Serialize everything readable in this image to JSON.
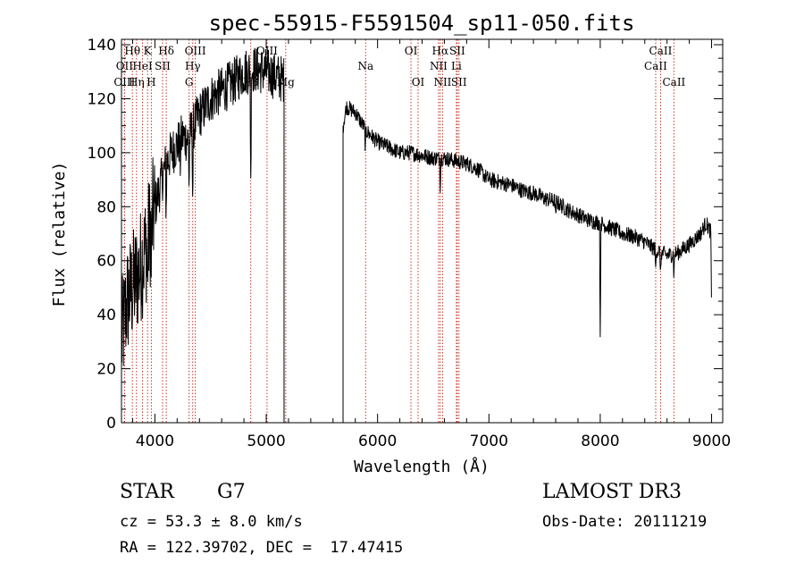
{
  "chart_data": {
    "type": "line",
    "title": "spec-55915-F5591504_sp11-050.fits",
    "xlabel": "Wavelength (Å)",
    "ylabel": "Flux (relative)",
    "xlim": [
      3700,
      9100
    ],
    "ylim": [
      0,
      142
    ],
    "xticks": [
      4000,
      5000,
      6000,
      7000,
      8000,
      9000
    ],
    "yticks": [
      0,
      20,
      40,
      60,
      80,
      100,
      120,
      140
    ],
    "gap": [
      5160,
      5690
    ],
    "continuum": [
      [
        3700,
        30
      ],
      [
        3750,
        45
      ],
      [
        3800,
        50
      ],
      [
        3850,
        55
      ],
      [
        3900,
        62
      ],
      [
        3950,
        70
      ],
      [
        4000,
        80
      ],
      [
        4050,
        88
      ],
      [
        4100,
        96
      ],
      [
        4150,
        100
      ],
      [
        4200,
        103
      ],
      [
        4250,
        106
      ],
      [
        4300,
        105
      ],
      [
        4350,
        110
      ],
      [
        4400,
        114
      ],
      [
        4500,
        120
      ],
      [
        4600,
        123
      ],
      [
        4700,
        126
      ],
      [
        4800,
        130
      ],
      [
        4900,
        131
      ],
      [
        5000,
        130
      ],
      [
        5100,
        128
      ],
      [
        5160,
        127
      ],
      [
        5690,
        110
      ],
      [
        5720,
        117
      ],
      [
        5800,
        115
      ],
      [
        5900,
        108
      ],
      [
        6000,
        104
      ],
      [
        6100,
        102
      ],
      [
        6200,
        100
      ],
      [
        6300,
        100
      ],
      [
        6400,
        99
      ],
      [
        6500,
        98
      ],
      [
        6600,
        98
      ],
      [
        6700,
        97
      ],
      [
        6800,
        96
      ],
      [
        6900,
        94
      ],
      [
        7000,
        90
      ],
      [
        7100,
        89
      ],
      [
        7200,
        88
      ],
      [
        7300,
        86
      ],
      [
        7400,
        85
      ],
      [
        7500,
        83
      ],
      [
        7600,
        82
      ],
      [
        7700,
        79
      ],
      [
        7800,
        77
      ],
      [
        7900,
        75
      ],
      [
        8000,
        74
      ],
      [
        8100,
        72
      ],
      [
        8200,
        70
      ],
      [
        8300,
        69
      ],
      [
        8400,
        67
      ],
      [
        8500,
        64
      ],
      [
        8600,
        62
      ],
      [
        8700,
        63
      ],
      [
        8800,
        66
      ],
      [
        8900,
        70
      ],
      [
        8950,
        74
      ],
      [
        9000,
        70
      ]
    ],
    "absorption_features": [
      [
        3933,
        20
      ],
      [
        3968,
        18
      ],
      [
        4101,
        20
      ],
      [
        4227,
        10
      ],
      [
        4307,
        20
      ],
      [
        4340,
        28
      ],
      [
        4861,
        45
      ],
      [
        5175,
        25
      ],
      [
        5890,
        8
      ],
      [
        6563,
        10
      ],
      [
        7600,
        8
      ],
      [
        8000,
        45
      ],
      [
        8498,
        8
      ],
      [
        8542,
        10
      ],
      [
        8662,
        10
      ],
      [
        9000,
        30
      ]
    ],
    "spectral_lines": [
      {
        "label": "Hθ",
        "wavelength": 3798,
        "row": 0
      },
      {
        "label": "OII",
        "wavelength": 3727,
        "row": 1
      },
      {
        "label": "OIII",
        "wavelength": 3727,
        "row": 2
      },
      {
        "label": "Hη",
        "wavelength": 3835,
        "row": 2
      },
      {
        "label": "HeI",
        "wavelength": 3889,
        "row": 1
      },
      {
        "label": "K",
        "wavelength": 3934,
        "row": 0
      },
      {
        "label": "H",
        "wavelength": 3968,
        "row": 2
      },
      {
        "label": "SII",
        "wavelength": 4069,
        "row": 1
      },
      {
        "label": "Hδ",
        "wavelength": 4102,
        "row": 0
      },
      {
        "label": "OIII",
        "wavelength": 4363,
        "row": 0
      },
      {
        "label": "Hγ",
        "wavelength": 4340,
        "row": 1
      },
      {
        "label": "G",
        "wavelength": 4307,
        "row": 2
      },
      {
        "label": "Hβ",
        "wavelength": 4861,
        "row": 2
      },
      {
        "label": "OIII",
        "wavelength": 5007,
        "row": 0
      },
      {
        "label": "Mg",
        "wavelength": 5175,
        "row": 2
      },
      {
        "label": "Na",
        "wavelength": 5893,
        "row": 1
      },
      {
        "label": "OI",
        "wavelength": 6300,
        "row": 0
      },
      {
        "label": "OI",
        "wavelength": 6364,
        "row": 2
      },
      {
        "label": "Hα",
        "wavelength": 6563,
        "row": 0
      },
      {
        "label": "NII",
        "wavelength": 6548,
        "row": 1
      },
      {
        "label": "NII",
        "wavelength": 6584,
        "row": 2
      },
      {
        "label": "SII",
        "wavelength": 6716,
        "row": 0
      },
      {
        "label": "Li",
        "wavelength": 6708,
        "row": 1
      },
      {
        "label": "SII",
        "wavelength": 6731,
        "row": 2
      },
      {
        "label": "CaII",
        "wavelength": 8542,
        "row": 0
      },
      {
        "label": "CaII",
        "wavelength": 8498,
        "row": 1
      },
      {
        "label": "CaII",
        "wavelength": 8662,
        "row": 2
      }
    ]
  },
  "footer": {
    "class_label": "STAR",
    "subclass": "G7",
    "survey": "LAMOST DR3",
    "redshift": "cz = 53.3 ± 8.0 km/s",
    "obs_date": "Obs-Date: 20111219",
    "coords": "RA = 122.39702, DEC =  17.47415"
  }
}
